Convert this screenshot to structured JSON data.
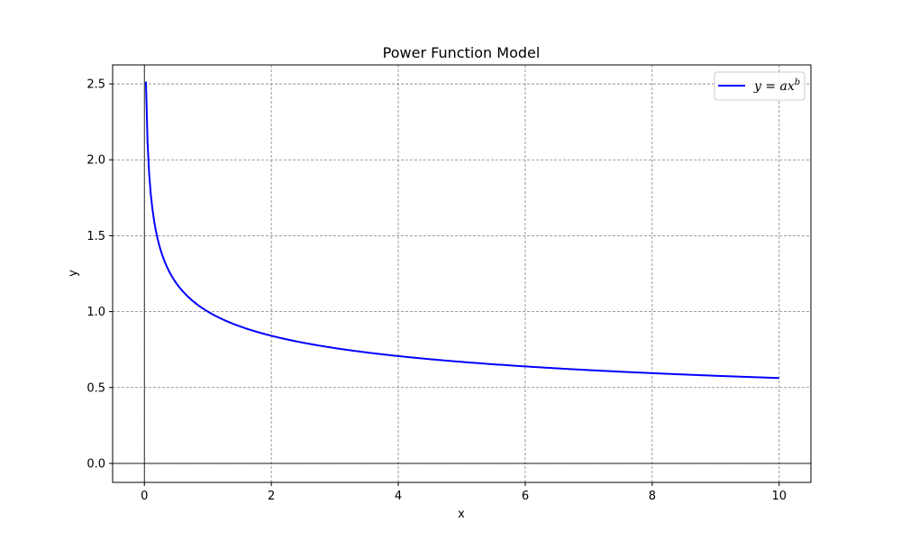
{
  "chart_data": {
    "type": "line",
    "title": "Power Function Model",
    "xlabel": "x",
    "ylabel": "y",
    "xlim": [
      -0.5,
      10.5
    ],
    "ylim": [
      -0.125,
      2.625
    ],
    "xticks": [
      0,
      2,
      4,
      6,
      8,
      10
    ],
    "yticks": [
      0.0,
      0.5,
      1.0,
      1.5,
      2.0,
      2.5
    ],
    "xtick_labels": [
      "0",
      "2",
      "4",
      "6",
      "8",
      "10"
    ],
    "ytick_labels": [
      "0.0",
      "0.5",
      "1.0",
      "1.5",
      "2.0",
      "2.5"
    ],
    "grid": true,
    "reference_lines": {
      "x": 0,
      "y": 0
    },
    "legend_position": "top-right",
    "model": {
      "a": 1.0,
      "b": -0.25,
      "x_start": 0.025,
      "x_end": 10
    },
    "series": [
      {
        "name": "y = ax^b",
        "color": "#0000ff",
        "x": [
          0.025,
          0.05,
          0.075,
          0.1,
          0.15,
          0.2,
          0.3,
          0.4,
          0.5,
          0.75,
          1,
          1.5,
          2,
          3,
          4,
          5,
          6,
          7,
          8,
          9,
          10
        ],
        "y": [
          2.515,
          2.115,
          1.911,
          1.778,
          1.607,
          1.495,
          1.351,
          1.257,
          1.189,
          1.075,
          1.0,
          0.904,
          0.841,
          0.76,
          0.707,
          0.669,
          0.639,
          0.615,
          0.595,
          0.577,
          0.562
        ]
      }
    ]
  },
  "legend": {
    "label_base": "y = ax",
    "label_sup": "b"
  }
}
